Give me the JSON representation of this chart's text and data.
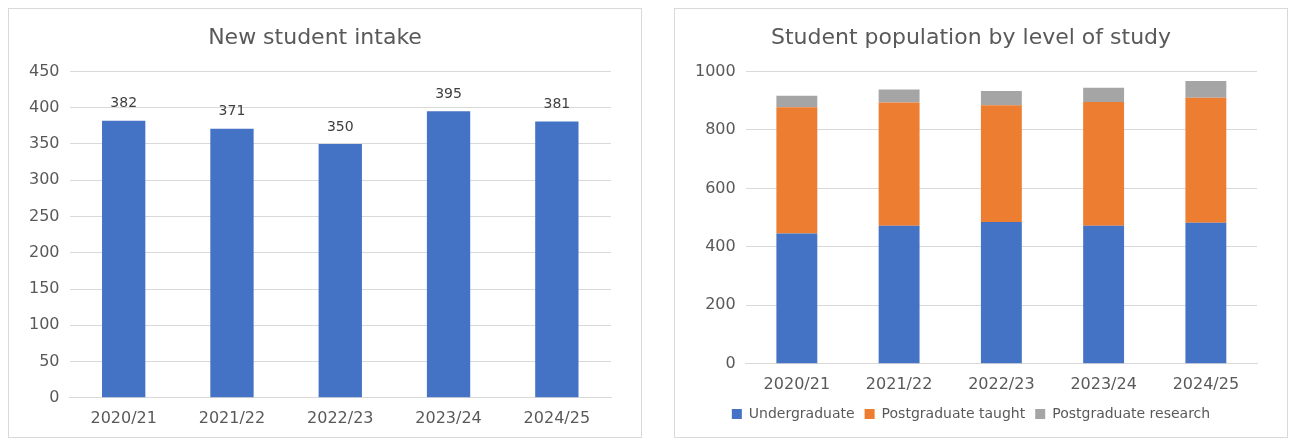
{
  "chart_data": [
    {
      "type": "bar",
      "title": "New student intake",
      "categories": [
        "2020/21",
        "2021/22",
        "2022/23",
        "2023/24",
        "2024/25"
      ],
      "values": [
        382,
        371,
        350,
        395,
        381
      ],
      "color": "#4472c4",
      "ylim": [
        0,
        450
      ],
      "yticks": [
        0,
        50,
        100,
        150,
        200,
        250,
        300,
        350,
        400,
        450
      ],
      "grid": "y",
      "data_labels": true,
      "legend": false
    },
    {
      "type": "bar",
      "title": "Student population by level of study",
      "categories": [
        "2020/21",
        "2021/22",
        "2022/23",
        "2023/24",
        "2024/25"
      ],
      "stacked": true,
      "series": [
        {
          "name": "Undergraduate",
          "color": "#4472c4",
          "values": [
            446,
            472,
            485,
            472,
            482
          ]
        },
        {
          "name": "Postgraduate taught",
          "color": "#ed7d31",
          "values": [
            431,
            422,
            399,
            423,
            428
          ]
        },
        {
          "name": "Postgraduate research",
          "color": "#a5a5a5",
          "values": [
            40,
            44,
            49,
            49,
            57
          ]
        }
      ],
      "ylim": [
        0,
        1000
      ],
      "yticks": [
        0,
        200,
        400,
        600,
        800,
        1000
      ],
      "grid": "y",
      "legend": "bottom"
    }
  ]
}
